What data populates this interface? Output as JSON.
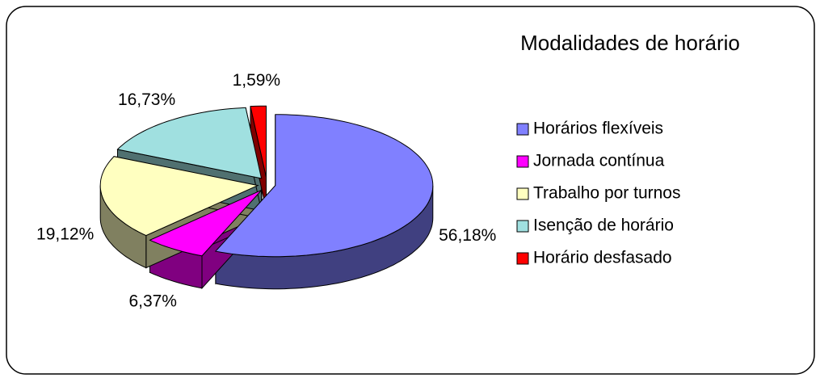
{
  "chart_data": {
    "type": "pie",
    "title": "Modalidades de horário",
    "categories": [
      "Horários flexíveis",
      "Jornada contínua",
      "Trabalho por turnos",
      "Isenção de horário",
      "Horário desfasado"
    ],
    "values": [
      56.18,
      6.37,
      19.12,
      16.73,
      1.59
    ],
    "value_labels": [
      "56,18%",
      "6,37%",
      "19,12%",
      "16,73%",
      "1,59%"
    ],
    "colors": [
      "#8080ff",
      "#ff00ff",
      "#ffffc0",
      "#a0e0e0",
      "#ff0000"
    ],
    "legend": "right"
  }
}
